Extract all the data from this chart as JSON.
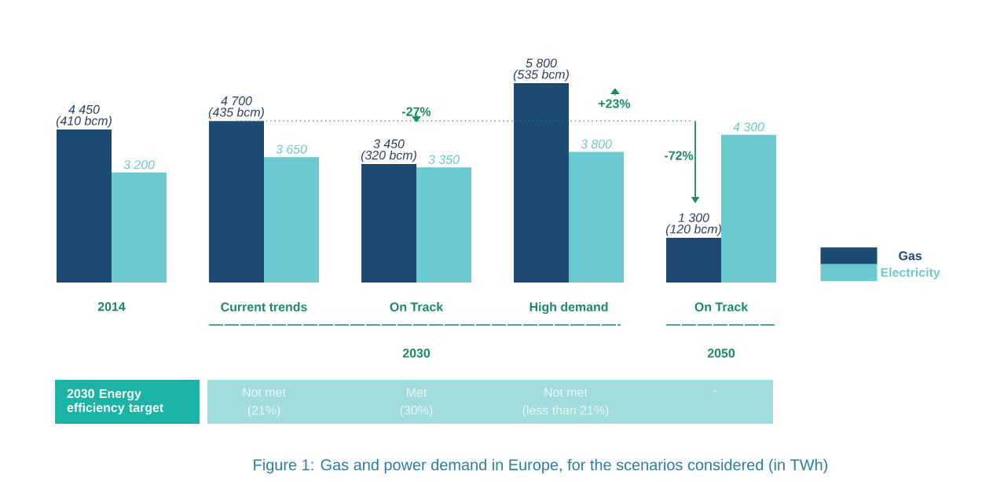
{
  "chart_data": {
    "type": "bar",
    "title": "Figure 1: Gas and power demand in Europe, for the scenarios considered (in TWh)",
    "categories": [
      "2014",
      "Current trends",
      "On Track",
      "High demand",
      "On Track"
    ],
    "series": [
      {
        "name": "Gas",
        "color": "#1c4a72",
        "values": [
          4450,
          4700,
          3450,
          5800,
          1300
        ],
        "value_labels": [
          "4 450",
          "4 700",
          "3 450",
          "5 800",
          "1 300"
        ]
      },
      {
        "name": "Electricity",
        "color": "#6cc9cf",
        "values": [
          3200,
          3650,
          3350,
          3800,
          4300
        ],
        "value_labels": [
          "3 200",
          "3 650",
          "3 350",
          "3 800",
          "4 300"
        ]
      }
    ],
    "tick_labels": "x",
    "legend": "right",
    "ref_lines": [
      {
        "axis": "y",
        "value": 4700,
        "line_style": "dotted",
        "color": "#1a8a6a"
      }
    ],
    "annotations": [
      "(410 bcm)",
      "(435 bcm)",
      "(320 bcm)",
      "(535 bcm)",
      "(120 bcm)",
      "-27%",
      "+23%",
      "-72%",
      "2030",
      "2050",
      "2030 Energy efficiency target",
      "Not met",
      "(21%)",
      "Met",
      "(30%)",
      "Not met",
      "(less than 21%)",
      "-"
    ]
  }
}
